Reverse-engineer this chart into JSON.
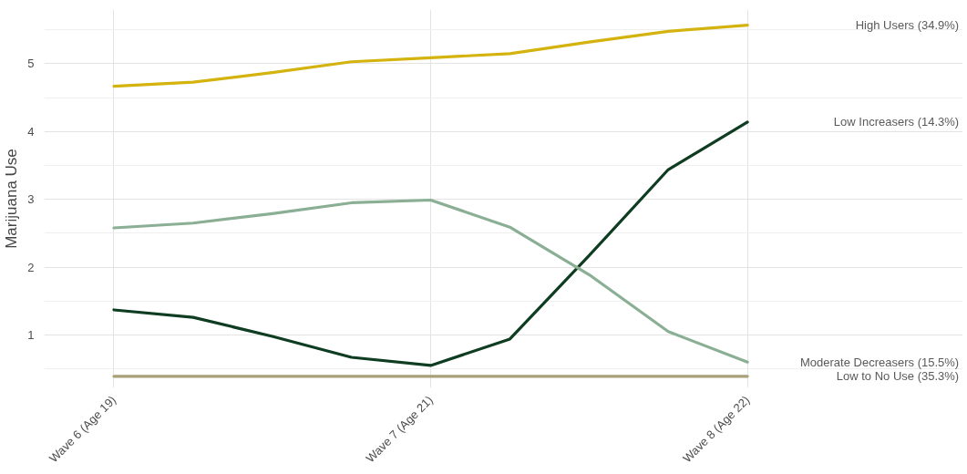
{
  "chart_data": {
    "type": "line",
    "ylabel": "Marijuana Use",
    "categories": [
      "Wave 6 (Age 19)",
      null,
      null,
      null,
      "Wave 7 (Age 21)",
      null,
      null,
      null,
      "Wave 8 (Age 22)"
    ],
    "series": [
      {
        "name": "High Users (34.9%)",
        "color": "#d4b30f",
        "values": [
          4.67,
          4.73,
          4.87,
          5.03,
          5.09,
          5.15,
          5.32,
          5.48,
          5.57
        ]
      },
      {
        "name": "Low Increasers (14.3%)",
        "color": "#0f3d22",
        "values": [
          1.37,
          1.26,
          0.98,
          0.67,
          0.55,
          0.94,
          2.17,
          3.44,
          4.14
        ]
      },
      {
        "name": "Moderate Decreasers (15.5%)",
        "color": "#8aaf94",
        "values": [
          2.58,
          2.65,
          2.79,
          2.95,
          2.99,
          2.59,
          1.89,
          1.05,
          0.6
        ]
      },
      {
        "name": "Low to No Use (35.3%)",
        "color": "#a8a079",
        "values": [
          0.39,
          0.39,
          0.39,
          0.39,
          0.39,
          0.39,
          0.39,
          0.39,
          0.39
        ]
      }
    ],
    "ylim": [
      0.22,
      5.8
    ],
    "yticks": [
      {
        "value": 0.5,
        "label": null
      },
      1,
      {
        "value": 1.5,
        "label": null
      },
      2,
      {
        "value": 2.5,
        "label": null
      },
      3,
      {
        "value": 3.5,
        "label": null
      },
      4,
      {
        "value": 4.5,
        "label": null
      },
      5,
      {
        "value": 5.5,
        "label": null
      }
    ],
    "grid": true,
    "legend": false,
    "line_style": "solid"
  }
}
